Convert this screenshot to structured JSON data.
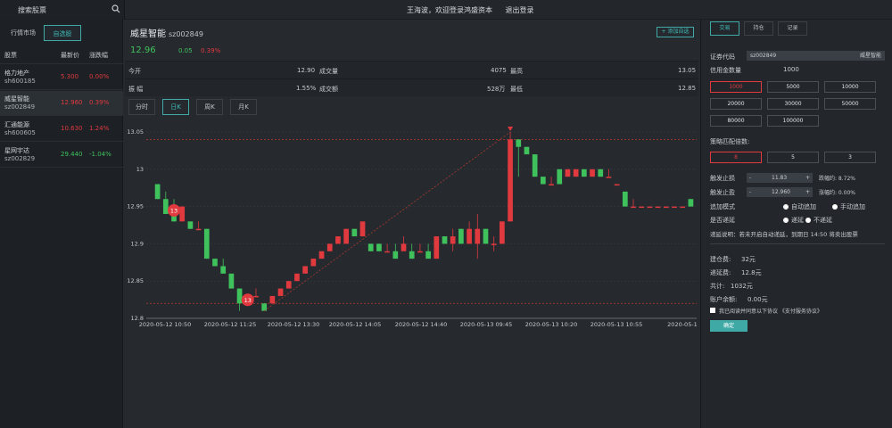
{
  "topbar": {
    "search_label": "搜索股票",
    "welcome": "王海波，欢迎登录鸿盛资本",
    "logout": "退出登录"
  },
  "left": {
    "tabs": [
      "行情市场",
      "自选股"
    ],
    "headers": [
      "股票",
      "最新价",
      "涨跌幅"
    ],
    "rows": [
      {
        "name": "格力地产",
        "code": "sh600185",
        "price": "5.300",
        "change": "0.00%",
        "color": "red"
      },
      {
        "name": "威星智能",
        "code": "sz002849",
        "price": "12.960",
        "change": "0.39%",
        "color": "red"
      },
      {
        "name": "汇通能源",
        "code": "sh600605",
        "price": "10.630",
        "change": "1.24%",
        "color": "red"
      },
      {
        "name": "星网宇达",
        "code": "sz002829",
        "price": "29.440",
        "change": "-1.04%",
        "color": "green"
      }
    ]
  },
  "stock": {
    "name": "威星智能",
    "code": "sz002849",
    "add_fav": "+ 添加自选",
    "price": "12.96",
    "chg_abs": "0.05",
    "chg_pct": "0.39%",
    "quote": {
      "open_label": "今开",
      "open": "12.90",
      "volume_label": "成交量",
      "volume": "4075",
      "high_label": "最高",
      "high": "13.05",
      "amp_label": "振 幅",
      "amp": "1.55%",
      "amount_label": "成交额",
      "amount": "528万",
      "low_label": "最低",
      "low": "12.85"
    },
    "period_tabs": [
      "分时",
      "日K",
      "周K",
      "月K"
    ]
  },
  "chart_data": {
    "type": "candlestick",
    "ylim": [
      12.8,
      13.05
    ],
    "yticks": [
      "13.05",
      "13",
      "12.95",
      "12.9",
      "12.85",
      "12.8"
    ],
    "xticks": [
      "2020-05-12 10:50",
      "2020-05-12 11:25",
      "2020-05-12 13:30",
      "2020-05-12 14:05",
      "2020-05-12 14:40",
      "2020-05-13 09:45",
      "2020-05-13 10:20",
      "2020-05-13 10:55",
      "2020-05-1"
    ],
    "markers": [
      "13",
      "13"
    ],
    "colors": {
      "up": "#e0393e",
      "down": "#3fc15c",
      "grid": "#3a3f45",
      "dash": "#c0392b"
    },
    "candles": [
      {
        "o": 12.98,
        "c": 12.96,
        "h": 12.98,
        "l": 12.96
      },
      {
        "o": 12.96,
        "c": 12.94,
        "h": 12.97,
        "l": 12.94
      },
      {
        "o": 12.95,
        "c": 12.93,
        "h": 12.96,
        "l": 12.93
      },
      {
        "o": 12.93,
        "c": 12.95,
        "h": 12.95,
        "l": 12.93
      },
      {
        "o": 12.93,
        "c": 12.92,
        "h": 12.93,
        "l": 12.92
      },
      {
        "o": 12.92,
        "c": 12.92,
        "h": 12.93,
        "l": 12.92
      },
      {
        "o": 12.92,
        "c": 12.88,
        "h": 12.92,
        "l": 12.88
      },
      {
        "o": 12.88,
        "c": 12.87,
        "h": 12.88,
        "l": 12.87
      },
      {
        "o": 12.87,
        "c": 12.86,
        "h": 12.88,
        "l": 12.86
      },
      {
        "o": 12.86,
        "c": 12.84,
        "h": 12.86,
        "l": 12.84
      },
      {
        "o": 12.84,
        "c": 12.82,
        "h": 12.84,
        "l": 12.81
      },
      {
        "o": 12.82,
        "c": 12.83,
        "h": 12.83,
        "l": 12.82
      },
      {
        "o": 12.83,
        "c": 12.83,
        "h": 12.84,
        "l": 12.83
      },
      {
        "o": 12.82,
        "c": 12.81,
        "h": 12.82,
        "l": 12.81
      },
      {
        "o": 12.82,
        "c": 12.83,
        "h": 12.83,
        "l": 12.82
      },
      {
        "o": 12.83,
        "c": 12.84,
        "h": 12.84,
        "l": 12.83
      },
      {
        "o": 12.84,
        "c": 12.85,
        "h": 12.85,
        "l": 12.84
      },
      {
        "o": 12.85,
        "c": 12.86,
        "h": 12.86,
        "l": 12.85
      },
      {
        "o": 12.86,
        "c": 12.87,
        "h": 12.87,
        "l": 12.86
      },
      {
        "o": 12.87,
        "c": 12.88,
        "h": 12.88,
        "l": 12.87
      },
      {
        "o": 12.88,
        "c": 12.89,
        "h": 12.89,
        "l": 12.88
      },
      {
        "o": 12.89,
        "c": 12.9,
        "h": 12.9,
        "l": 12.89
      },
      {
        "o": 12.9,
        "c": 12.91,
        "h": 12.91,
        "l": 12.9
      },
      {
        "o": 12.9,
        "c": 12.92,
        "h": 12.92,
        "l": 12.9
      },
      {
        "o": 12.92,
        "c": 12.91,
        "h": 12.92,
        "l": 12.91
      },
      {
        "o": 12.91,
        "c": 12.93,
        "h": 12.93,
        "l": 12.91
      },
      {
        "o": 12.9,
        "c": 12.89,
        "h": 12.9,
        "l": 12.89
      },
      {
        "o": 12.9,
        "c": 12.89,
        "h": 12.9,
        "l": 12.89
      },
      {
        "o": 12.89,
        "c": 12.89,
        "h": 12.9,
        "l": 12.89
      },
      {
        "o": 12.89,
        "c": 12.88,
        "h": 12.9,
        "l": 12.88
      },
      {
        "o": 12.89,
        "c": 12.9,
        "h": 12.91,
        "l": 12.89
      },
      {
        "o": 12.89,
        "c": 12.88,
        "h": 12.9,
        "l": 12.88
      },
      {
        "o": 12.89,
        "c": 12.89,
        "h": 12.9,
        "l": 12.89
      },
      {
        "o": 12.89,
        "c": 12.88,
        "h": 12.9,
        "l": 12.88
      },
      {
        "o": 12.88,
        "c": 12.91,
        "h": 12.91,
        "l": 12.88
      },
      {
        "o": 12.91,
        "c": 12.9,
        "h": 12.91,
        "l": 12.9
      },
      {
        "o": 12.9,
        "c": 12.91,
        "h": 12.92,
        "l": 12.89
      },
      {
        "o": 12.92,
        "c": 12.9,
        "h": 12.92,
        "l": 12.9
      },
      {
        "o": 12.9,
        "c": 12.92,
        "h": 12.93,
        "l": 12.9
      },
      {
        "o": 12.9,
        "c": 12.92,
        "h": 12.94,
        "l": 12.88
      },
      {
        "o": 12.92,
        "c": 12.9,
        "h": 12.92,
        "l": 12.9
      },
      {
        "o": 12.9,
        "c": 12.9,
        "h": 12.91,
        "l": 12.89
      },
      {
        "o": 12.9,
        "c": 12.93,
        "h": 12.93,
        "l": 12.9
      },
      {
        "o": 12.93,
        "c": 13.04,
        "h": 13.05,
        "l": 12.93
      },
      {
        "o": 13.04,
        "c": 13.03,
        "h": 13.04,
        "l": 12.99
      },
      {
        "o": 13.03,
        "c": 13.02,
        "h": 13.03,
        "l": 13.02
      },
      {
        "o": 13.02,
        "c": 12.99,
        "h": 13.02,
        "l": 12.99
      },
      {
        "o": 12.99,
        "c": 12.98,
        "h": 12.99,
        "l": 12.98
      },
      {
        "o": 12.98,
        "c": 12.98,
        "h": 12.99,
        "l": 12.98
      },
      {
        "o": 13.0,
        "c": 12.98,
        "h": 13.0,
        "l": 12.98
      },
      {
        "o": 12.99,
        "c": 13.0,
        "h": 13.0,
        "l": 12.99
      },
      {
        "o": 12.99,
        "c": 13.0,
        "h": 13.0,
        "l": 12.99
      },
      {
        "o": 13.0,
        "c": 12.99,
        "h": 13.0,
        "l": 12.99
      },
      {
        "o": 12.99,
        "c": 13.0,
        "h": 13.0,
        "l": 12.99
      },
      {
        "o": 13.0,
        "c": 12.99,
        "h": 13.0,
        "l": 12.99
      },
      {
        "o": 12.99,
        "c": 12.99,
        "h": 13.0,
        "l": 12.99
      },
      {
        "o": 12.98,
        "c": 12.98,
        "h": 12.98,
        "l": 12.98
      },
      {
        "o": 12.97,
        "c": 12.95,
        "h": 12.97,
        "l": 12.95
      },
      {
        "o": 12.95,
        "c": 12.95,
        "h": 12.96,
        "l": 12.95
      },
      {
        "o": 12.95,
        "c": 12.95,
        "h": 12.95,
        "l": 12.95
      },
      {
        "o": 12.95,
        "c": 12.95,
        "h": 12.95,
        "l": 12.95
      },
      {
        "o": 12.95,
        "c": 12.95,
        "h": 12.95,
        "l": 12.95
      },
      {
        "o": 12.95,
        "c": 12.95,
        "h": 12.95,
        "l": 12.95
      },
      {
        "o": 12.95,
        "c": 12.95,
        "h": 12.95,
        "l": 12.95
      },
      {
        "o": 12.95,
        "c": 12.95,
        "h": 12.95,
        "l": 12.95
      },
      {
        "o": 12.96,
        "c": 12.95,
        "h": 12.96,
        "l": 12.95
      }
    ]
  },
  "trade": {
    "tabs": [
      "交易",
      "持仓",
      "记录"
    ],
    "code_label": "证券代码",
    "code_value": "sz002849",
    "code_name": "威星智能",
    "qty_label": "信用金数量",
    "qty_value": "1000",
    "qty_options": [
      "1000",
      "5000",
      "10000",
      "20000",
      "30000",
      "50000",
      "80000",
      "100000"
    ],
    "multiplier_label": "策略匹配倍数:",
    "multiplier_options": [
      "8",
      "5",
      "3"
    ],
    "stop_loss_label": "触发止损",
    "stop_loss_value": "11.83",
    "stop_loss_pct": "跌幅约: 8.72%",
    "take_profit_label": "触发止盈",
    "take_profit_value": "12.960",
    "take_profit_pct": "涨幅约: 0.00%",
    "add_mode_label": "追加模式",
    "add_mode_auto": "自动追加",
    "add_mode_manual": "手动追加",
    "defer_label": "是否递延",
    "defer_yes": "递延",
    "defer_no": "不递延",
    "defer_note": "递延说明：若未开启自动递延，到期日 14:50 将卖出股票",
    "build_fee_label": "建仓费:",
    "build_fee": "32元",
    "defer_fee_label": "递延费:",
    "defer_fee": "12.8元",
    "total_label": "共计:",
    "total": "1032元",
    "balance_label": "账户余额:",
    "balance": "0.00元",
    "agree_text": "我已阅读并同意以下协议 《支付服务协议》",
    "confirm": "确定"
  }
}
